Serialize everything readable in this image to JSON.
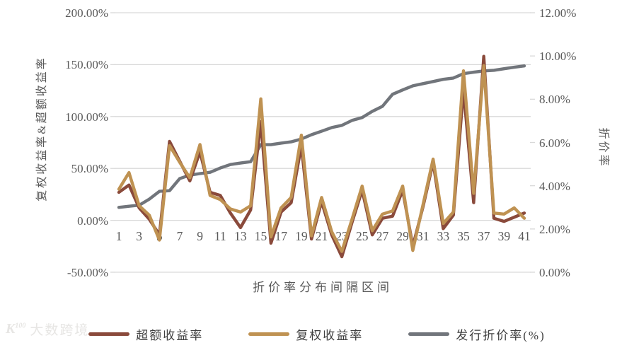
{
  "chart_data": {
    "type": "line",
    "x_axis_title": "折价率分布间隔区间",
    "left_axis_title": "复权收益率&超额收益率",
    "right_axis_title": "折价率",
    "x_tick_labels": [
      "1",
      "3",
      "5",
      "7",
      "9",
      "11",
      "13",
      "15",
      "17",
      "19",
      "21",
      "23",
      "25",
      "27",
      "29",
      "31",
      "33",
      "35",
      "37",
      "39",
      "41"
    ],
    "num_points": 41,
    "left_axis": {
      "min": -50,
      "max": 200,
      "unit": "%",
      "tick_labels": [
        "200.00%",
        "150.00%",
        "100.00%",
        "50.00%",
        "0.00%",
        "-50.00%"
      ],
      "tick_values": [
        200,
        150,
        100,
        50,
        0,
        -50
      ]
    },
    "right_axis": {
      "min": 0,
      "max": 12,
      "unit": "%",
      "tick_labels": [
        "12.00%",
        "10.00%",
        "8.00%",
        "6.00%",
        "4.00%",
        "2.00%",
        "0.00%"
      ],
      "tick_values": [
        12,
        10,
        8,
        6,
        4,
        2,
        0
      ]
    },
    "grid": true,
    "gridline_color": "#d9d9d9",
    "legend_position": "bottom",
    "series": [
      {
        "name": "超额收益率",
        "axis": "left",
        "color": "#8a4a3b",
        "values": [
          27,
          34,
          12,
          1,
          -14,
          76,
          57,
          38,
          66,
          27,
          24,
          7,
          -7,
          10,
          95,
          -22,
          8,
          17,
          72,
          -18,
          18,
          -14,
          -35,
          -2,
          29,
          -14,
          2,
          4,
          29,
          -25,
          13,
          56,
          -8,
          5,
          126,
          17,
          158,
          2,
          -1,
          3,
          7
        ]
      },
      {
        "name": "复权收益率",
        "axis": "left",
        "color": "#bf9252",
        "values": [
          30,
          46,
          14,
          5,
          -19,
          72,
          56,
          41,
          73,
          24,
          20,
          11,
          8,
          14,
          117,
          -16,
          12,
          22,
          82,
          -15,
          22,
          -11,
          -30,
          1,
          33,
          -10,
          6,
          9,
          33,
          -29,
          15,
          59,
          -3,
          8,
          144,
          26,
          149,
          7,
          6,
          12,
          2
        ]
      },
      {
        "name": "发行折价率(%)",
        "axis": "right",
        "color": "#71757b",
        "values": [
          3.0,
          3.05,
          3.1,
          3.38,
          3.74,
          3.77,
          4.33,
          4.49,
          4.56,
          4.62,
          4.82,
          4.98,
          5.05,
          5.11,
          5.9,
          5.9,
          5.97,
          6.03,
          6.16,
          6.36,
          6.52,
          6.69,
          6.79,
          7.02,
          7.15,
          7.44,
          7.67,
          8.23,
          8.43,
          8.62,
          8.72,
          8.82,
          8.92,
          8.98,
          9.18,
          9.25,
          9.31,
          9.34,
          9.41,
          9.48,
          9.54
        ]
      }
    ]
  },
  "watermark": {
    "logo_text": "K",
    "logo_sup": "100",
    "text": "大数跨境"
  }
}
